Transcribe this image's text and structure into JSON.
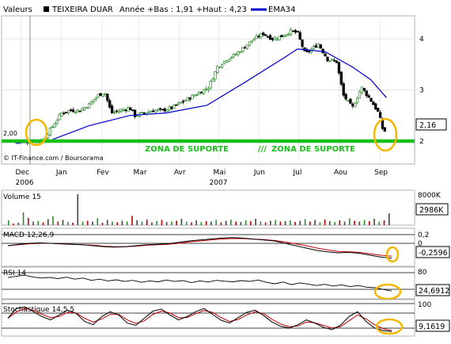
{
  "header": {
    "label": "Valeurs",
    "stock": "TEIXEIRA DUAR",
    "info": "Année +Bas : 1,91 +Haut : 4,23",
    "ema_label": "EMA34"
  },
  "footer": {
    "credit": "© IT-Finance.com / Boursorama"
  },
  "colors": {
    "candle_up": "#2e8b2e",
    "candle_down": "#000000",
    "ema": "#0000cc",
    "support": "#19c019",
    "highlight": "#f5b800",
    "macd": "#000000",
    "signal": "#c00000"
  },
  "icons": {
    "highlight_marks": "highlight-circle"
  },
  "annotations": {
    "zone1": "ZONA  DE  SUPORTE",
    "separator": "///",
    "zone2": "ZONA DE SUPORTE",
    "price_left": "2,00",
    "last_price": "2,16"
  },
  "chart_data": [
    {
      "type": "candlestick",
      "ylim": [
        1.55,
        4.45
      ],
      "y_ticks": [
        "4",
        "3",
        "2"
      ],
      "x_ticks": [
        "Dec",
        "Jan",
        "Fev",
        "Mar",
        "Avr",
        "Mai",
        "Jun",
        "Jul",
        "Aou",
        "Sep"
      ],
      "x_years": [
        "2006",
        "2007"
      ],
      "close_series": [
        [
          "2006-12-01",
          1.98
        ],
        [
          "2006-12-15",
          2.0
        ],
        [
          "2006-12-22",
          2.02
        ],
        [
          "2006-12-28",
          2.25
        ],
        [
          "2007-01-05",
          2.55
        ],
        [
          "2007-01-12",
          2.6
        ],
        [
          "2007-01-19",
          2.6
        ],
        [
          "2007-01-26",
          2.72
        ],
        [
          "2007-02-02",
          2.9
        ],
        [
          "2007-02-07",
          2.95
        ],
        [
          "2007-02-12",
          2.55
        ],
        [
          "2007-02-19",
          2.6
        ],
        [
          "2007-02-26",
          2.65
        ],
        [
          "2007-03-02",
          2.5
        ],
        [
          "2007-03-09",
          2.55
        ],
        [
          "2007-03-16",
          2.6
        ],
        [
          "2007-03-23",
          2.6
        ],
        [
          "2007-03-30",
          2.65
        ],
        [
          "2007-04-06",
          2.75
        ],
        [
          "2007-04-13",
          2.85
        ],
        [
          "2007-04-20",
          2.95
        ],
        [
          "2007-04-27",
          3.05
        ],
        [
          "2007-05-04",
          3.45
        ],
        [
          "2007-05-11",
          3.6
        ],
        [
          "2007-05-18",
          3.7
        ],
        [
          "2007-05-25",
          3.85
        ],
        [
          "2007-06-01",
          4.0
        ],
        [
          "2007-06-08",
          4.1
        ],
        [
          "2007-06-15",
          4.0
        ],
        [
          "2007-06-22",
          4.05
        ],
        [
          "2007-06-29",
          4.15
        ],
        [
          "2007-07-04",
          4.12
        ],
        [
          "2007-07-10",
          3.7
        ],
        [
          "2007-07-20",
          3.9
        ],
        [
          "2007-07-27",
          3.6
        ],
        [
          "2007-08-03",
          3.55
        ],
        [
          "2007-08-08",
          2.9
        ],
        [
          "2007-08-15",
          2.65
        ],
        [
          "2007-08-22",
          3.05
        ],
        [
          "2007-08-29",
          2.8
        ],
        [
          "2007-09-04",
          2.55
        ],
        [
          "2007-09-07",
          2.25
        ],
        [
          "2007-09-10",
          2.16
        ]
      ],
      "ema34": [
        [
          "2006-12-01",
          1.96
        ],
        [
          "2006-12-28",
          2.02
        ],
        [
          "2007-01-26",
          2.3
        ],
        [
          "2007-02-26",
          2.5
        ],
        [
          "2007-03-26",
          2.55
        ],
        [
          "2007-04-26",
          2.7
        ],
        [
          "2007-05-25",
          3.15
        ],
        [
          "2007-06-25",
          3.65
        ],
        [
          "2007-07-04",
          3.8
        ],
        [
          "2007-07-25",
          3.75
        ],
        [
          "2007-08-15",
          3.45
        ],
        [
          "2007-08-29",
          3.2
        ],
        [
          "2007-09-10",
          2.85
        ]
      ],
      "support_level": 2.0
    },
    {
      "type": "bar",
      "title": "Volume 15",
      "y_ticks": [
        "8000K"
      ],
      "last_value": "2986K",
      "ylim": [
        0,
        8000
      ],
      "values_k": [
        1200,
        400,
        600,
        3200,
        1800,
        900,
        1100,
        700,
        1500,
        2200,
        900,
        1300,
        800,
        600,
        7800,
        900,
        1100,
        900,
        1700,
        600,
        1300,
        900,
        700,
        1100,
        900,
        2300,
        1200,
        900,
        1400,
        700,
        1000,
        1300,
        800,
        900,
        1100,
        1600,
        900,
        700,
        1200,
        800,
        1000,
        900,
        1300,
        700,
        1100,
        1400,
        900,
        800,
        1200,
        1000,
        1600,
        900,
        700,
        1100,
        1300,
        900,
        1000,
        1200,
        800,
        1100,
        1500,
        900,
        1300,
        700,
        1400,
        1000,
        800,
        1200,
        900,
        1700,
        1100,
        900,
        1300,
        1000,
        1600,
        900,
        1200,
        2986
      ]
    },
    {
      "type": "line",
      "title": "MACD 12,26,9",
      "y_ticks": [
        "0,2",
        "0"
      ],
      "last_value": "-0,2596",
      "ylim": [
        -0.4,
        0.3
      ],
      "macd": [
        0.0,
        0.03,
        0.05,
        0.06,
        0.05,
        0.04,
        0.03,
        0.02,
        0.0,
        -0.02,
        -0.03,
        -0.02,
        0.0,
        0.02,
        0.03,
        0.04,
        0.07,
        0.1,
        0.12,
        0.14,
        0.16,
        0.17,
        0.16,
        0.14,
        0.12,
        0.1,
        0.05,
        0.0,
        -0.05,
        -0.1,
        -0.13,
        -0.15,
        -0.14,
        -0.16,
        -0.2,
        -0.24,
        -0.26
      ],
      "signal": [
        0.0,
        0.02,
        0.04,
        0.05,
        0.05,
        0.04,
        0.03,
        0.02,
        0.01,
        -0.01,
        -0.02,
        -0.02,
        -0.01,
        0.01,
        0.02,
        0.03,
        0.05,
        0.08,
        0.1,
        0.12,
        0.14,
        0.15,
        0.15,
        0.14,
        0.13,
        0.11,
        0.08,
        0.04,
        0.0,
        -0.05,
        -0.09,
        -0.12,
        -0.13,
        -0.14,
        -0.17,
        -0.2,
        -0.22
      ]
    },
    {
      "type": "line",
      "title": "RSI 14",
      "y_ticks": [
        "80"
      ],
      "last_value": "24,6912",
      "ylim": [
        0,
        100
      ],
      "rsi": [
        72,
        76,
        80,
        74,
        70,
        72,
        68,
        73,
        66,
        70,
        62,
        66,
        60,
        64,
        58,
        62,
        55,
        60,
        57,
        63,
        58,
        61,
        54,
        60,
        56,
        62,
        59,
        57,
        61,
        58,
        63,
        55,
        50,
        56,
        47,
        53,
        49,
        44,
        48,
        42,
        46,
        40,
        44,
        38,
        36,
        30,
        24.69
      ]
    },
    {
      "type": "line",
      "title": "Stochastique 14,5,5",
      "y_ticks": [
        "100"
      ],
      "last_value": "9,1619",
      "ylim": [
        0,
        100
      ],
      "k": [
        50,
        80,
        85,
        70,
        55,
        45,
        60,
        75,
        65,
        40,
        30,
        55,
        70,
        60,
        35,
        28,
        50,
        72,
        78,
        60,
        45,
        55,
        70,
        80,
        62,
        44,
        35,
        52,
        68,
        75,
        58,
        38,
        25,
        20,
        30,
        45,
        35,
        22,
        15,
        28,
        55,
        70,
        40,
        20,
        12,
        9.16
      ],
      "d": [
        50,
        70,
        80,
        75,
        62,
        52,
        55,
        68,
        66,
        50,
        38,
        48,
        62,
        62,
        45,
        34,
        42,
        62,
        72,
        66,
        52,
        52,
        64,
        74,
        68,
        52,
        40,
        46,
        60,
        70,
        64,
        46,
        32,
        24,
        26,
        38,
        36,
        28,
        20,
        24,
        42,
        60,
        48,
        30,
        18,
        12
      ]
    }
  ]
}
